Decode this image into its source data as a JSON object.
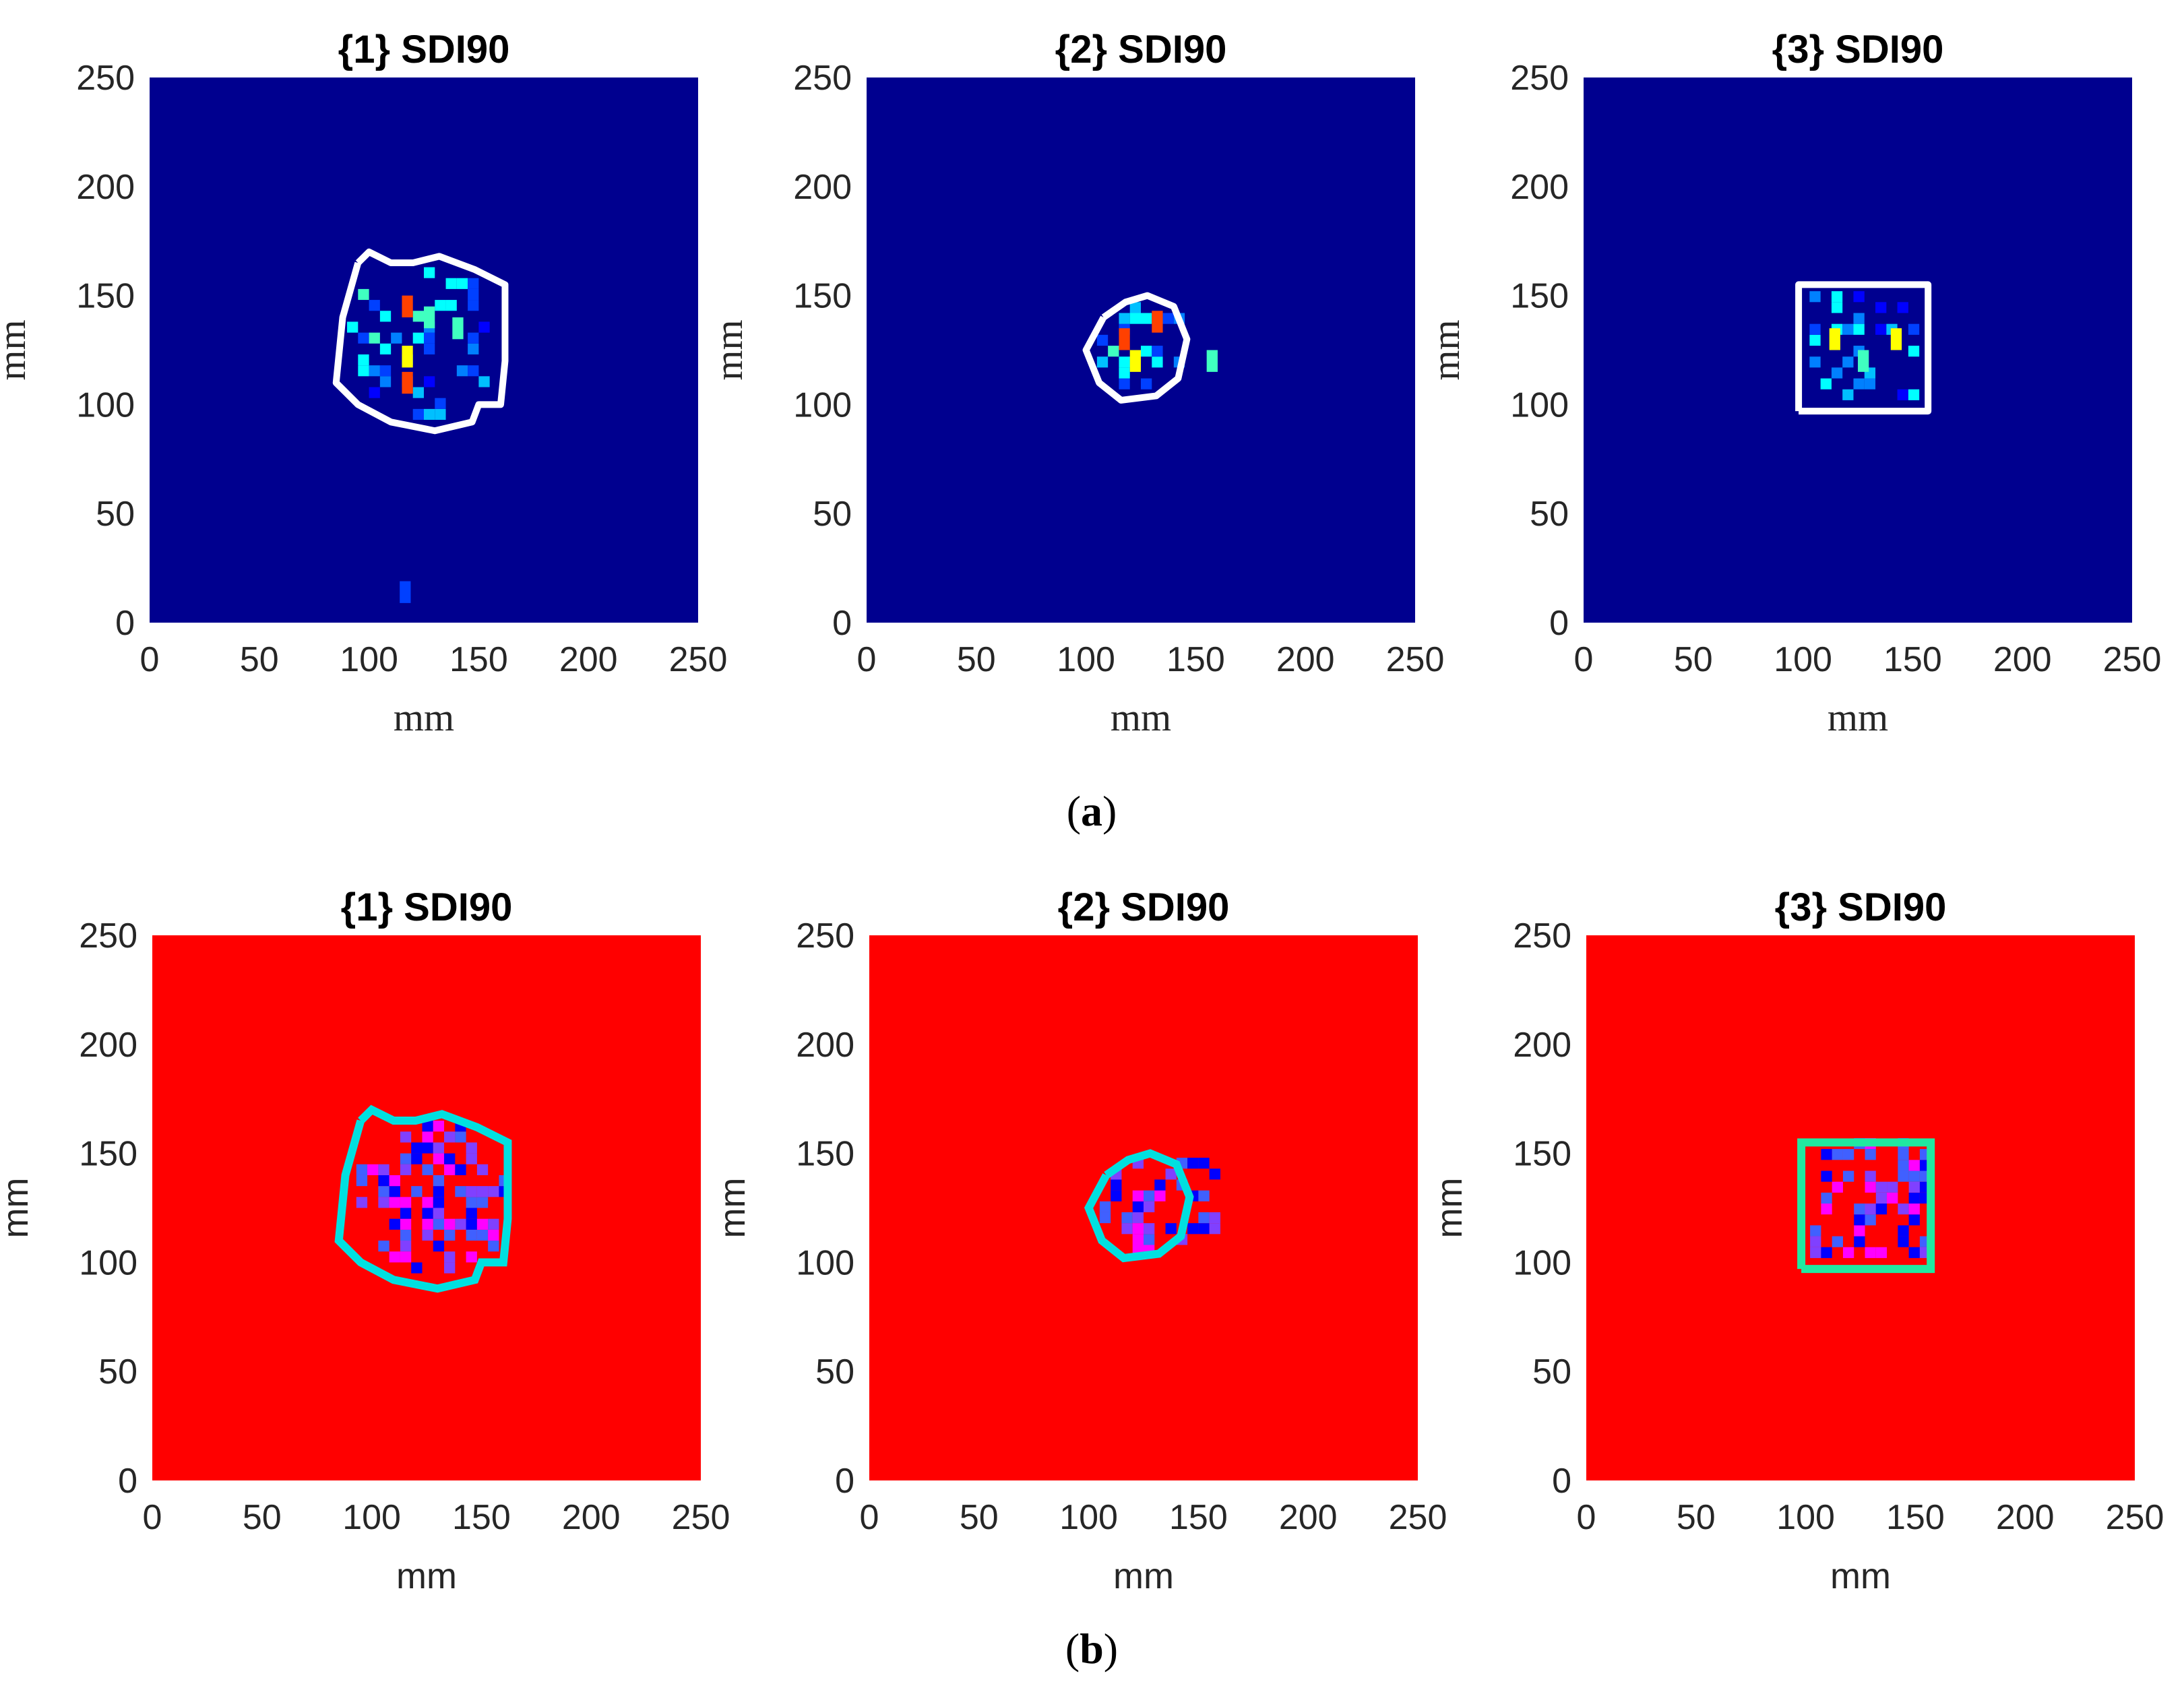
{
  "captions": {
    "a": "a",
    "b": "b"
  },
  "panel_group_a_colors": {
    "background": "#00008F",
    "outline": "#FFFFFF"
  },
  "panel_group_b_colors": {
    "background": "#FF0000",
    "outline_1": "#00E0E0",
    "outline_2": "#00E0E0",
    "outline_3": "#20E8A0",
    "pixel_palette": [
      "#0000FF",
      "#FF00FF",
      "#8040FF",
      "#4060FF"
    ]
  },
  "chart_data": [
    {
      "type": "heatmap",
      "group": "a",
      "title": "{1} SDI90",
      "xlabel": "mm",
      "ylabel": "mm",
      "xlim": [
        0,
        250
      ],
      "ylim": [
        0,
        250
      ],
      "xticks": [
        "0",
        "50",
        "100",
        "150",
        "200",
        "250"
      ],
      "yticks": [
        "0",
        "50",
        "100",
        "150",
        "200",
        "250"
      ],
      "colormap": "jet",
      "damage_region": {
        "shape": "irregular",
        "x_range": [
          85,
          163
        ],
        "y_range": [
          88,
          167
        ]
      },
      "hotspots": [
        {
          "x": 115,
          "y": 145,
          "level": "high"
        },
        {
          "x": 115,
          "y": 122,
          "level": "high"
        },
        {
          "x": 115,
          "y": 110,
          "level": "high"
        },
        {
          "x": 125,
          "y": 140,
          "level": "medium"
        },
        {
          "x": 138,
          "y": 135,
          "level": "medium"
        },
        {
          "x": 114,
          "y": 14,
          "level": "low"
        }
      ]
    },
    {
      "type": "heatmap",
      "group": "a",
      "title": "{2} SDI90",
      "xlabel": "mm",
      "ylabel": "mm",
      "xlim": [
        0,
        250
      ],
      "ylim": [
        0,
        250
      ],
      "xticks": [
        "0",
        "50",
        "100",
        "150",
        "200",
        "250"
      ],
      "yticks": [
        "0",
        "50",
        "100",
        "150",
        "200",
        "250"
      ],
      "colormap": "jet",
      "damage_region": {
        "shape": "irregular",
        "x_range": [
          100,
          147
        ],
        "y_range": [
          102,
          149
        ]
      },
      "hotspots": [
        {
          "x": 115,
          "y": 130,
          "level": "high"
        },
        {
          "x": 130,
          "y": 138,
          "level": "high"
        },
        {
          "x": 120,
          "y": 120,
          "level": "high"
        },
        {
          "x": 155,
          "y": 120,
          "level": "medium"
        }
      ]
    },
    {
      "type": "heatmap",
      "group": "a",
      "title": "{3} SDI90",
      "xlabel": "mm",
      "ylabel": "mm",
      "xlim": [
        0,
        250
      ],
      "ylim": [
        0,
        250
      ],
      "xticks": [
        "0",
        "50",
        "100",
        "150",
        "200",
        "250"
      ],
      "yticks": [
        "0",
        "50",
        "100",
        "150",
        "200",
        "250"
      ],
      "colormap": "jet",
      "damage_region": {
        "shape": "square",
        "x_range": [
          98,
          157
        ],
        "y_range": [
          97,
          155
        ]
      },
      "hotspots": [
        {
          "x": 112,
          "y": 130,
          "level": "high"
        },
        {
          "x": 140,
          "y": 130,
          "level": "high"
        },
        {
          "x": 125,
          "y": 120,
          "level": "medium"
        }
      ]
    },
    {
      "type": "heatmap",
      "group": "b",
      "title": "{1} SDI90",
      "xlabel": "mm",
      "ylabel": "mm",
      "xlim": [
        0,
        250
      ],
      "ylim": [
        0,
        250
      ],
      "xticks": [
        "0",
        "50",
        "100",
        "150",
        "200",
        "250"
      ],
      "yticks": [
        "0",
        "50",
        "100",
        "150",
        "200",
        "250"
      ],
      "damage_region": {
        "shape": "irregular",
        "x_range": [
          88,
          165
        ],
        "y_range": [
          90,
          167
        ]
      }
    },
    {
      "type": "heatmap",
      "group": "b",
      "title": "{2} SDI90",
      "xlabel": "mm",
      "ylabel": "mm",
      "xlim": [
        0,
        250
      ],
      "ylim": [
        0,
        250
      ],
      "xticks": [
        "0",
        "50",
        "100",
        "150",
        "200",
        "250"
      ],
      "yticks": [
        "0",
        "50",
        "100",
        "150",
        "200",
        "250"
      ],
      "damage_region": {
        "shape": "irregular",
        "x_range": [
          100,
          162
        ],
        "y_range": [
          98,
          152
        ]
      }
    },
    {
      "type": "heatmap",
      "group": "b",
      "title": "{3} SDI90",
      "xlabel": "mm",
      "ylabel": "mm",
      "xlim": [
        0,
        250
      ],
      "ylim": [
        0,
        250
      ],
      "xticks": [
        "0",
        "50",
        "100",
        "150",
        "200",
        "250"
      ],
      "yticks": [
        "0",
        "50",
        "100",
        "150",
        "200",
        "250"
      ],
      "damage_region": {
        "shape": "square",
        "x_range": [
          97,
          158
        ],
        "y_range": [
          97,
          157
        ]
      }
    }
  ]
}
